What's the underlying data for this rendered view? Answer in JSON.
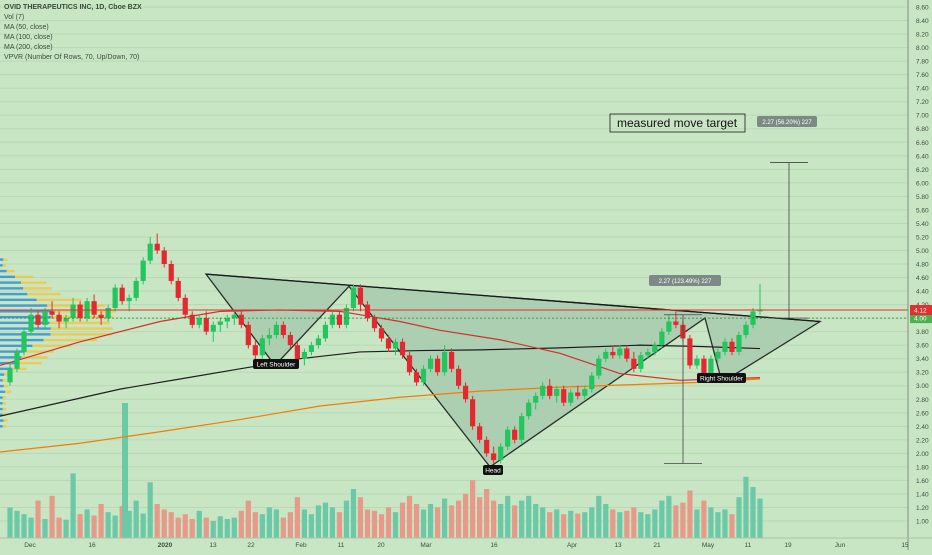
{
  "legend": {
    "title": "OVID THERAPEUTICS INC, 1D, Cboe BZX",
    "vol": "Vol (7)",
    "ma50": "MA (50, close)",
    "ma100": "MA (100, close)",
    "ma200": "MA (200, close)",
    "vpvr": "VPVR (Number Of Rows, 70, Up/Down, 70)"
  },
  "colors": {
    "background": "#c8e6c4",
    "up": "#22c55e",
    "down": "#e5282f",
    "vol_up": "#6cc9a8",
    "vol_down": "#e79a8a",
    "ma50": "#d32f2f",
    "ma100": "#1e1e1e",
    "ma200": "#f57c00",
    "pattern_fill": "#a9cdb0",
    "vpvr_up": "#2f8fd6",
    "vpvr_down": "#f5c542"
  },
  "annotations": {
    "left_shoulder": "Left Shoulder",
    "head": "Head",
    "right_shoulder": "Right Shoulder",
    "measured_move": "measured move target",
    "measure1": "2.27 (123.49%) 227",
    "measure2": "2.27 (56.20%) 227"
  },
  "price_labels": {
    "last_price": "4.12",
    "ref_price": "4.00"
  },
  "chart_data": {
    "type": "candlestick",
    "title": "OVID THERAPEUTICS INC, 1D, Cboe BZX",
    "y_ticks": [
      "1.00",
      "1.20",
      "1.40",
      "1.60",
      "1.80",
      "2.00",
      "2.20",
      "2.40",
      "2.60",
      "2.80",
      "3.00",
      "3.20",
      "3.40",
      "3.60",
      "3.80",
      "4.00",
      "4.20",
      "4.40",
      "4.60",
      "4.80",
      "5.00",
      "5.20",
      "5.40",
      "5.60",
      "5.80",
      "6.00",
      "6.20",
      "6.40",
      "6.60",
      "6.80",
      "7.00",
      "7.20",
      "7.40",
      "7.60",
      "7.80",
      "8.00",
      "8.20",
      "8.40",
      "8.60"
    ],
    "x_ticks": [
      "Dec",
      "16",
      "2020",
      "13",
      "22",
      "Feb",
      "11",
      "20",
      "Mar",
      "16",
      "Apr",
      "13",
      "21",
      "May",
      "11",
      "19",
      "Jun",
      "15"
    ],
    "ylim": [
      0.8,
      8.7
    ],
    "last_close": 4.12,
    "candles": [
      [
        3.05,
        3.35,
        3.0,
        3.25
      ],
      [
        3.25,
        3.55,
        3.2,
        3.5
      ],
      [
        3.5,
        3.85,
        3.45,
        3.8
      ],
      [
        3.8,
        4.15,
        3.75,
        4.05
      ],
      [
        4.05,
        4.1,
        3.85,
        3.9
      ],
      [
        3.9,
        4.15,
        3.85,
        4.1
      ],
      [
        4.1,
        4.25,
        4.0,
        4.05
      ],
      [
        4.05,
        4.1,
        3.85,
        3.95
      ],
      [
        3.95,
        4.05,
        3.85,
        4.0
      ],
      [
        4.0,
        4.3,
        3.95,
        4.2
      ],
      [
        4.2,
        4.25,
        3.95,
        4.0
      ],
      [
        4.0,
        4.3,
        3.95,
        4.25
      ],
      [
        4.25,
        4.35,
        4.0,
        4.05
      ],
      [
        4.05,
        4.1,
        3.9,
        4.0
      ],
      [
        4.0,
        4.2,
        3.95,
        4.15
      ],
      [
        4.15,
        4.5,
        4.1,
        4.45
      ],
      [
        4.45,
        4.5,
        4.2,
        4.25
      ],
      [
        4.25,
        4.35,
        4.1,
        4.3
      ],
      [
        4.3,
        4.6,
        4.25,
        4.55
      ],
      [
        4.55,
        4.9,
        4.5,
        4.85
      ],
      [
        4.85,
        5.2,
        4.8,
        5.1
      ],
      [
        5.1,
        5.25,
        4.95,
        5.0
      ],
      [
        5.0,
        5.05,
        4.75,
        4.8
      ],
      [
        4.8,
        4.85,
        4.5,
        4.55
      ],
      [
        4.55,
        4.6,
        4.25,
        4.3
      ],
      [
        4.3,
        4.35,
        4.0,
        4.05
      ],
      [
        4.05,
        4.1,
        3.85,
        3.9
      ],
      [
        3.9,
        4.05,
        3.85,
        4.0
      ],
      [
        4.0,
        4.1,
        3.75,
        3.8
      ],
      [
        3.8,
        3.95,
        3.65,
        3.9
      ],
      [
        3.9,
        4.0,
        3.8,
        3.95
      ],
      [
        3.95,
        4.05,
        3.85,
        4.0
      ],
      [
        4.0,
        4.1,
        3.9,
        4.05
      ],
      [
        4.05,
        4.1,
        3.85,
        3.9
      ],
      [
        3.9,
        3.95,
        3.55,
        3.6
      ],
      [
        3.6,
        3.7,
        3.35,
        3.45
      ],
      [
        3.45,
        3.75,
        3.4,
        3.7
      ],
      [
        3.7,
        3.85,
        3.6,
        3.75
      ],
      [
        3.75,
        3.95,
        3.7,
        3.9
      ],
      [
        3.9,
        3.95,
        3.7,
        3.75
      ],
      [
        3.75,
        3.8,
        3.55,
        3.6
      ],
      [
        3.6,
        3.65,
        3.35,
        3.4
      ],
      [
        3.4,
        3.55,
        3.3,
        3.5
      ],
      [
        3.5,
        3.65,
        3.45,
        3.6
      ],
      [
        3.6,
        3.75,
        3.55,
        3.7
      ],
      [
        3.7,
        3.95,
        3.65,
        3.9
      ],
      [
        3.9,
        4.1,
        3.85,
        4.05
      ],
      [
        4.05,
        4.1,
        3.85,
        3.9
      ],
      [
        3.9,
        4.2,
        3.85,
        4.15
      ],
      [
        4.15,
        4.5,
        4.1,
        4.45
      ],
      [
        4.45,
        4.5,
        4.1,
        4.2
      ],
      [
        4.2,
        4.25,
        3.95,
        4.0
      ],
      [
        4.0,
        4.05,
        3.8,
        3.85
      ],
      [
        3.85,
        3.9,
        3.65,
        3.7
      ],
      [
        3.7,
        3.75,
        3.5,
        3.55
      ],
      [
        3.55,
        3.7,
        3.45,
        3.65
      ],
      [
        3.65,
        3.7,
        3.4,
        3.45
      ],
      [
        3.45,
        3.5,
        3.15,
        3.2
      ],
      [
        3.2,
        3.25,
        3.0,
        3.05
      ],
      [
        3.05,
        3.3,
        3.0,
        3.25
      ],
      [
        3.25,
        3.45,
        3.2,
        3.4
      ],
      [
        3.4,
        3.45,
        3.15,
        3.2
      ],
      [
        3.2,
        3.6,
        3.15,
        3.5
      ],
      [
        3.5,
        3.55,
        3.2,
        3.25
      ],
      [
        3.25,
        3.3,
        2.95,
        3.0
      ],
      [
        3.0,
        3.05,
        2.75,
        2.8
      ],
      [
        2.8,
        2.85,
        2.35,
        2.4
      ],
      [
        2.4,
        2.45,
        2.15,
        2.2
      ],
      [
        2.2,
        2.25,
        1.95,
        2.0
      ],
      [
        2.0,
        2.1,
        1.85,
        1.9
      ],
      [
        1.9,
        2.15,
        1.85,
        2.1
      ],
      [
        2.1,
        2.4,
        2.05,
        2.35
      ],
      [
        2.35,
        2.4,
        2.15,
        2.2
      ],
      [
        2.2,
        2.6,
        2.15,
        2.55
      ],
      [
        2.55,
        2.8,
        2.5,
        2.75
      ],
      [
        2.75,
        2.9,
        2.65,
        2.85
      ],
      [
        2.85,
        3.05,
        2.8,
        3.0
      ],
      [
        3.0,
        3.1,
        2.8,
        2.85
      ],
      [
        2.85,
        3.0,
        2.75,
        2.95
      ],
      [
        2.95,
        3.0,
        2.7,
        2.75
      ],
      [
        2.75,
        2.95,
        2.7,
        2.9
      ],
      [
        2.9,
        3.0,
        2.8,
        2.85
      ],
      [
        2.85,
        3.0,
        2.8,
        2.95
      ],
      [
        2.95,
        3.2,
        2.9,
        3.15
      ],
      [
        3.15,
        3.45,
        3.1,
        3.4
      ],
      [
        3.4,
        3.55,
        3.35,
        3.5
      ],
      [
        3.5,
        3.6,
        3.4,
        3.45
      ],
      [
        3.45,
        3.6,
        3.4,
        3.55
      ],
      [
        3.55,
        3.6,
        3.35,
        3.4
      ],
      [
        3.4,
        3.5,
        3.2,
        3.25
      ],
      [
        3.25,
        3.5,
        3.2,
        3.45
      ],
      [
        3.45,
        3.55,
        3.4,
        3.5
      ],
      [
        3.5,
        3.65,
        3.45,
        3.6
      ],
      [
        3.6,
        3.85,
        3.55,
        3.8
      ],
      [
        3.8,
        4.05,
        3.75,
        3.95
      ],
      [
        3.95,
        4.1,
        3.85,
        3.9
      ],
      [
        3.9,
        3.95,
        3.65,
        3.7
      ],
      [
        3.7,
        3.75,
        3.25,
        3.3
      ],
      [
        3.3,
        3.45,
        3.25,
        3.4
      ],
      [
        3.4,
        3.45,
        3.05,
        3.1
      ],
      [
        3.1,
        3.45,
        3.05,
        3.4
      ],
      [
        3.4,
        3.55,
        3.35,
        3.5
      ],
      [
        3.5,
        3.7,
        3.45,
        3.65
      ],
      [
        3.65,
        3.7,
        3.45,
        3.5
      ],
      [
        3.5,
        3.8,
        3.45,
        3.75
      ],
      [
        3.75,
        3.95,
        3.7,
        3.9
      ],
      [
        3.9,
        4.15,
        3.85,
        4.1
      ],
      [
        4.1,
        4.5,
        4.05,
        4.12
      ]
    ],
    "volumes": [
      0.45,
      0.4,
      0.35,
      0.3,
      0.55,
      0.28,
      0.62,
      0.3,
      0.27,
      0.95,
      0.35,
      0.42,
      0.33,
      0.5,
      0.38,
      0.33,
      0.47,
      0.4,
      0.55,
      0.36,
      0.82,
      0.5,
      0.42,
      0.38,
      0.3,
      0.35,
      0.28,
      0.4,
      0.3,
      0.25,
      0.32,
      0.28,
      0.3,
      0.4,
      0.55,
      0.38,
      0.35,
      0.45,
      0.42,
      0.3,
      0.38,
      0.6,
      0.42,
      0.35,
      0.48,
      0.52,
      0.45,
      0.38,
      0.55,
      0.72,
      0.6,
      0.42,
      0.4,
      0.35,
      0.45,
      0.38,
      0.52,
      0.62,
      0.5,
      0.42,
      0.5,
      0.45,
      0.58,
      0.48,
      0.55,
      0.65,
      0.85,
      0.6,
      0.72,
      0.55,
      0.5,
      0.62,
      0.48,
      0.55,
      0.62,
      0.5,
      0.45,
      0.38,
      0.42,
      0.35,
      0.4,
      0.36,
      0.38,
      0.45,
      0.62,
      0.5,
      0.42,
      0.38,
      0.4,
      0.45,
      0.38,
      0.35,
      0.42,
      0.55,
      0.62,
      0.48,
      0.52,
      0.7,
      0.42,
      0.55,
      0.45,
      0.38,
      0.42,
      0.35,
      0.6,
      0.9,
      0.75,
      0.58
    ]
  }
}
